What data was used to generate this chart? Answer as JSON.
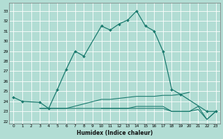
{
  "xlabel": "Humidex (Indice chaleur)",
  "background_color": "#b2ddd4",
  "grid_color": "#ffffff",
  "line_color": "#1a7a6e",
  "xlim": [
    -0.5,
    23.5
  ],
  "ylim": [
    21.8,
    33.8
  ],
  "yticks": [
    22,
    23,
    24,
    25,
    26,
    27,
    28,
    29,
    30,
    31,
    32,
    33
  ],
  "xticks": [
    0,
    1,
    2,
    3,
    4,
    5,
    6,
    7,
    8,
    9,
    10,
    11,
    12,
    13,
    14,
    15,
    16,
    17,
    18,
    19,
    20,
    21,
    22,
    23
  ],
  "series": [
    {
      "x": [
        0,
        1,
        3,
        4,
        5,
        6,
        7,
        8,
        10,
        11,
        12,
        13,
        14,
        15,
        16,
        17,
        18,
        19,
        22,
        23
      ],
      "y": [
        24.4,
        24.0,
        23.9,
        23.3,
        25.2,
        27.2,
        29.0,
        28.5,
        31.5,
        31.1,
        31.7,
        32.1,
        33.0,
        31.5,
        31.0,
        29.0,
        25.2,
        24.7,
        23.0,
        23.0
      ],
      "marker": true
    },
    {
      "x": [
        3,
        4,
        5,
        6,
        10,
        11,
        12,
        13,
        14,
        15,
        16,
        17,
        18,
        19,
        20
      ],
      "y": [
        23.3,
        23.3,
        23.3,
        23.3,
        24.2,
        24.2,
        24.3,
        24.4,
        24.5,
        24.5,
        24.5,
        24.6,
        24.6,
        24.7,
        24.9
      ],
      "marker": false
    },
    {
      "x": [
        3,
        4,
        5,
        6,
        10,
        11,
        12,
        13,
        14,
        15,
        16,
        17,
        18,
        19,
        20,
        21,
        22,
        23
      ],
      "y": [
        23.3,
        23.3,
        23.3,
        23.3,
        23.3,
        23.3,
        23.3,
        23.3,
        23.3,
        23.3,
        23.3,
        23.3,
        23.0,
        23.0,
        23.0,
        23.2,
        22.2,
        23.0
      ],
      "marker": false
    },
    {
      "x": [
        10,
        11,
        12,
        13,
        14,
        15,
        16,
        17,
        18,
        19,
        20,
        21,
        22,
        23
      ],
      "y": [
        23.3,
        23.3,
        23.3,
        23.3,
        23.5,
        23.5,
        23.5,
        23.5,
        23.0,
        23.0,
        23.0,
        23.5,
        22.2,
        23.0
      ],
      "marker": false
    }
  ]
}
